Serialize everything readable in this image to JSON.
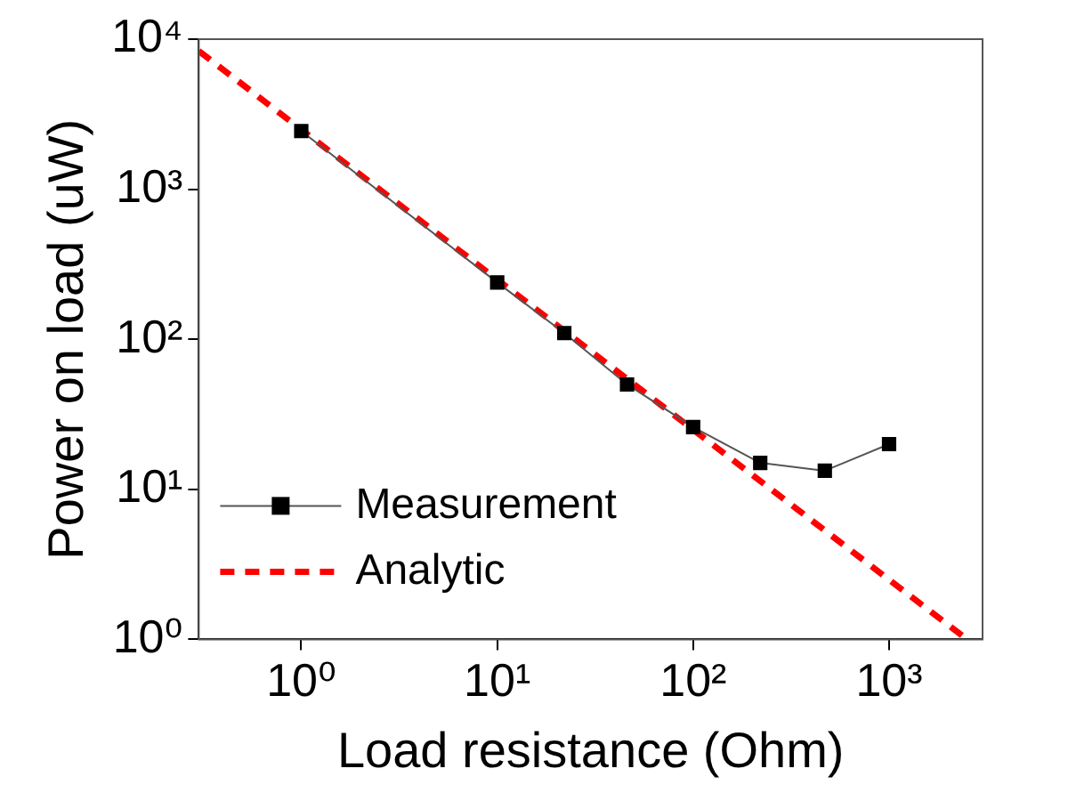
{
  "chart_data": {
    "type": "line",
    "xlabel": "Load resistance (Ohm)",
    "ylabel": "Power on load (uW)",
    "log": "xy",
    "grid": false,
    "legend": "bottom left",
    "xlim": [
      0.3,
      3000
    ],
    "ylim": [
      1,
      10000
    ],
    "xticks": [
      {
        "value": 1,
        "label": "10⁰"
      },
      {
        "value": 10,
        "label": "10¹"
      },
      {
        "value": 100,
        "label": "10²"
      },
      {
        "value": 1000,
        "label": "10³"
      }
    ],
    "yticks": [
      {
        "value": 1,
        "label": "10⁰"
      },
      {
        "value": 10,
        "label": "10¹"
      },
      {
        "value": 100,
        "label": "10²"
      },
      {
        "value": 1000,
        "label": "10³"
      },
      {
        "value": 10000,
        "label": "10⁴"
      }
    ],
    "series": [
      {
        "name": "Measurement",
        "color": "#000000",
        "marker": "square",
        "line_style": "solid",
        "x": [
          1,
          10,
          22,
          46,
          100,
          220,
          470,
          1000
        ],
        "values": [
          2440,
          239,
          110,
          50,
          26,
          15,
          13.3,
          20
        ]
      },
      {
        "name": "Analytic",
        "color": "#ff0000",
        "marker": "none",
        "line_style": "dashed",
        "x": [
          0.3,
          2500
        ],
        "values": [
          8333,
          1
        ]
      }
    ]
  }
}
